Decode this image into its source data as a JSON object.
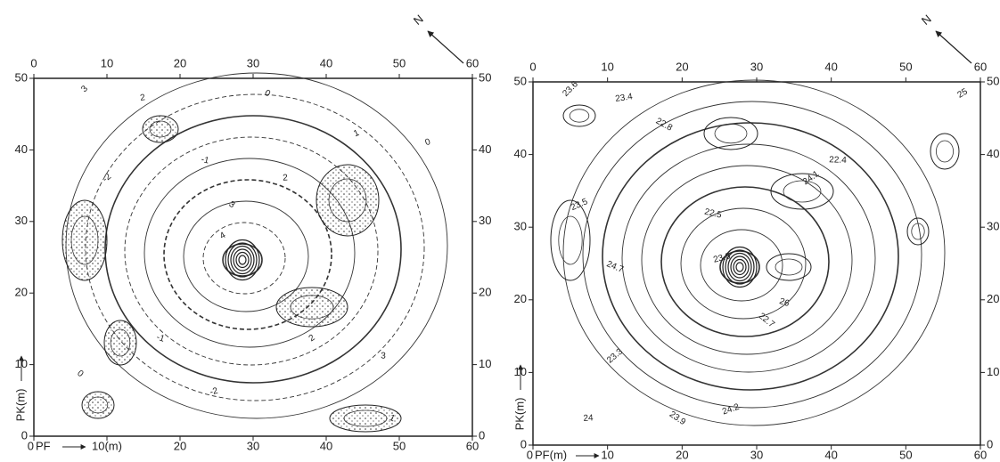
{
  "panels": [
    {
      "north": "N",
      "top_ticks": [
        0,
        10,
        20,
        30,
        40,
        50,
        60
      ],
      "bottom_ticks": [
        0,
        {
          "value": 10,
          "label": "10(m)"
        },
        20,
        30,
        40,
        50,
        60
      ],
      "x_axis_label": "PF",
      "left_ticks": [
        50,
        40,
        30,
        20,
        10,
        0
      ],
      "right_ticks": [
        50,
        40,
        30,
        20,
        10,
        0
      ],
      "y_axis_label": "PK(m)",
      "contour_labels": [
        "3",
        "2",
        "0",
        "1",
        "-1",
        "-2",
        "2",
        "3",
        "0",
        "-1",
        "2",
        "3",
        "0",
        "-2",
        "1",
        "4"
      ]
    },
    {
      "north": "N",
      "top_ticks": [
        0,
        10,
        20,
        30,
        40,
        50,
        60
      ],
      "bottom_ticks": [
        0,
        10,
        20,
        30,
        40,
        50,
        60
      ],
      "x_axis_label": "PF(m)",
      "left_ticks": [
        50,
        40,
        30,
        20,
        10,
        0
      ],
      "right_ticks": [
        50,
        40,
        30,
        20,
        10,
        0
      ],
      "y_axis_label": "PK(m)",
      "contour_labels": [
        "23.6",
        "23.4",
        "22.8",
        "23.5",
        "22.5",
        "23.3",
        "24",
        "23.9",
        "24.2",
        "26",
        "24.1",
        "22.4",
        "22.7",
        "23.8",
        "24.7",
        "25"
      ]
    }
  ]
}
